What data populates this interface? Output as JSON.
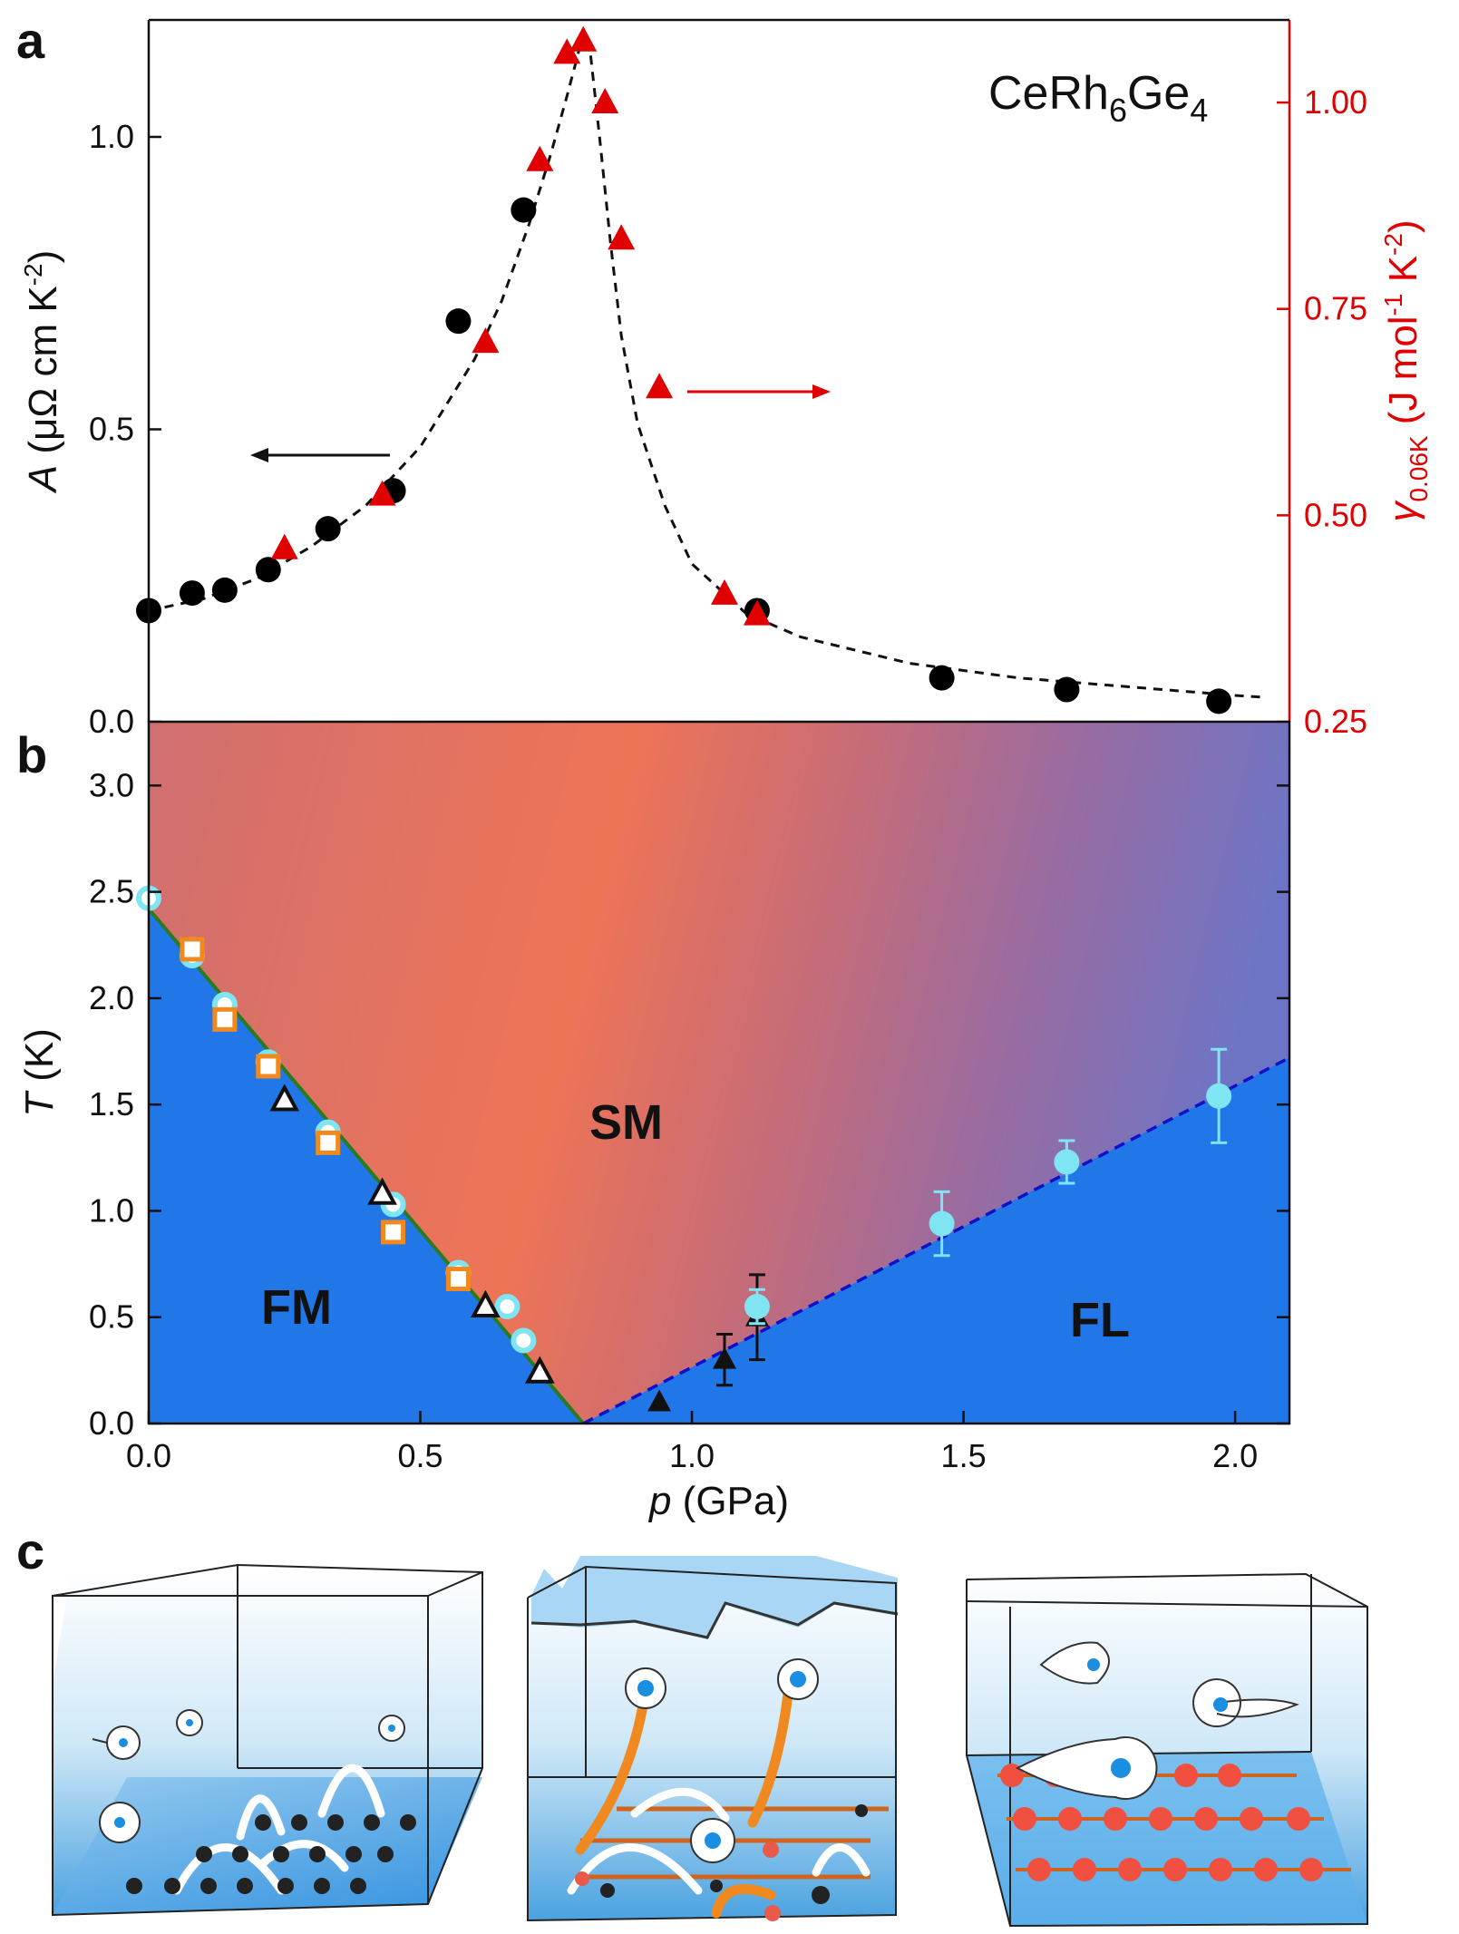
{
  "panel_labels": {
    "a": "a",
    "b": "b",
    "c": "c"
  },
  "compound": {
    "base": "CeRh",
    "sub1": "6",
    "mid": "Ge",
    "sub2": "4"
  },
  "chart_data": [
    {
      "panel": "a",
      "type": "scatter",
      "xlim": [
        0,
        2.1
      ],
      "ylim": [
        0,
        1.2
      ],
      "y2lim": [
        0.25,
        1.1
      ],
      "ylabel": {
        "sym": "A",
        "unit_open": " (μΩ cm K",
        "sup": "-2",
        "close": ")"
      },
      "y2label": {
        "sym": "γ",
        "sub": "0.06K",
        "unit_open": " (J mol",
        "sup1": "-1",
        "mid": " K",
        "sup2": "-2",
        "close": ")"
      },
      "yticks": [
        "0.0",
        "0.5",
        "1.0"
      ],
      "yticks_values": [
        0,
        0.5,
        1.0
      ],
      "y2ticks": [
        "0.25",
        "0.50",
        "0.75",
        "1.00"
      ],
      "y2ticks_values": [
        0.25,
        0.5,
        0.75,
        1.0
      ],
      "colors": {
        "A": "#000000",
        "gamma": "#e00000"
      },
      "series": [
        {
          "name": "A",
          "axis": "left",
          "marker": "circle",
          "x": [
            0.0,
            0.08,
            0.14,
            0.22,
            0.33,
            0.45,
            0.57,
            0.69,
            1.12,
            1.46,
            1.69,
            1.97
          ],
          "y": [
            0.19,
            0.22,
            0.225,
            0.26,
            0.33,
            0.395,
            0.685,
            0.875,
            0.19,
            0.075,
            0.055,
            0.035
          ]
        },
        {
          "name": "gamma",
          "axis": "right",
          "marker": "triangle",
          "x": [
            0.25,
            0.43,
            0.62,
            0.72,
            0.77,
            0.8,
            0.84,
            0.87,
            0.94,
            1.06,
            1.12
          ],
          "y": [
            0.46,
            0.525,
            0.71,
            0.93,
            1.06,
            1.075,
            1.0,
            0.835,
            0.655,
            0.405,
            0.38
          ]
        },
        {
          "name": "fit",
          "axis": "left",
          "style": "dashed",
          "x": [
            0.0,
            0.1,
            0.2,
            0.3,
            0.4,
            0.5,
            0.6,
            0.65,
            0.7,
            0.74,
            0.77,
            0.79,
            0.8,
            0.81,
            0.83,
            0.85,
            0.87,
            0.9,
            0.95,
            1.0,
            1.1,
            1.2,
            1.4,
            1.6,
            1.8,
            2.0,
            2.05
          ],
          "y": [
            0.19,
            0.21,
            0.245,
            0.3,
            0.37,
            0.47,
            0.62,
            0.72,
            0.85,
            0.97,
            1.07,
            1.14,
            1.18,
            1.17,
            1.0,
            0.82,
            0.66,
            0.51,
            0.37,
            0.27,
            0.185,
            0.145,
            0.1,
            0.075,
            0.06,
            0.045,
            0.042
          ]
        }
      ],
      "annotations": {
        "left_arrow": "←",
        "right_arrow": "→"
      }
    },
    {
      "panel": "b",
      "type": "scatter",
      "xlim": [
        0,
        2.1
      ],
      "ylim": [
        0,
        3.3
      ],
      "xlabel": {
        "sym": "p",
        "unit": " (GPa)"
      },
      "ylabel": {
        "sym": "T",
        "unit": " (K)"
      },
      "xticks": [
        "0.0",
        "0.5",
        "1.0",
        "1.5",
        "2.0"
      ],
      "xticks_values": [
        0,
        0.5,
        1.0,
        1.5,
        2.0
      ],
      "yticks": [
        "0.0",
        "0.5",
        "1.0",
        "1.5",
        "2.0",
        "2.5",
        "3.0"
      ],
      "yticks_values": [
        0,
        0.5,
        1.0,
        1.5,
        2.0,
        2.5,
        3.0
      ],
      "regions": {
        "FM": "FM",
        "SM": "SM",
        "FL": "FL"
      },
      "colors": {
        "fm": "#2277e8",
        "sm": "#e87060",
        "cyan": "#7fe5f2",
        "orange": "#f08a20",
        "fm_line": "#2a7a1e",
        "fl_line": "#1010c8"
      },
      "phase_lines": {
        "fm_boundary": {
          "x": [
            0.0,
            0.8
          ],
          "y": [
            2.42,
            0.0
          ]
        },
        "fl_boundary": {
          "x": [
            0.8,
            2.1
          ],
          "y": [
            0.0,
            1.72
          ]
        }
      },
      "series": [
        {
          "name": "cyan_circles_ring",
          "marker": "ring",
          "x": [
            0.0,
            0.08,
            0.14,
            0.22,
            0.33,
            0.45,
            0.57,
            0.66,
            0.69
          ],
          "y": [
            2.47,
            2.2,
            1.97,
            1.7,
            1.37,
            1.03,
            0.71,
            0.55,
            0.39
          ]
        },
        {
          "name": "orange_squares",
          "marker": "square",
          "x": [
            0.08,
            0.14,
            0.22,
            0.33,
            0.45,
            0.57
          ],
          "y": [
            2.23,
            1.9,
            1.68,
            1.32,
            0.9,
            0.68
          ]
        },
        {
          "name": "open_triangles",
          "marker": "open-triangle",
          "x": [
            0.25,
            0.43,
            0.62,
            0.72
          ],
          "y": [
            1.52,
            1.08,
            0.55,
            0.24
          ]
        },
        {
          "name": "filled_triangles",
          "marker": "filled-triangle",
          "x": [
            0.94,
            1.06,
            1.12
          ],
          "y": [
            0.1,
            0.3,
            0.5
          ],
          "err": [
            0,
            0.12,
            0.2
          ]
        },
        {
          "name": "cyan_circles_filled",
          "marker": "dot",
          "x": [
            1.12,
            1.46,
            1.69,
            1.97
          ],
          "y": [
            0.55,
            0.94,
            1.23,
            1.54
          ],
          "err": [
            0.08,
            0.15,
            0.1,
            0.22
          ]
        }
      ]
    }
  ]
}
